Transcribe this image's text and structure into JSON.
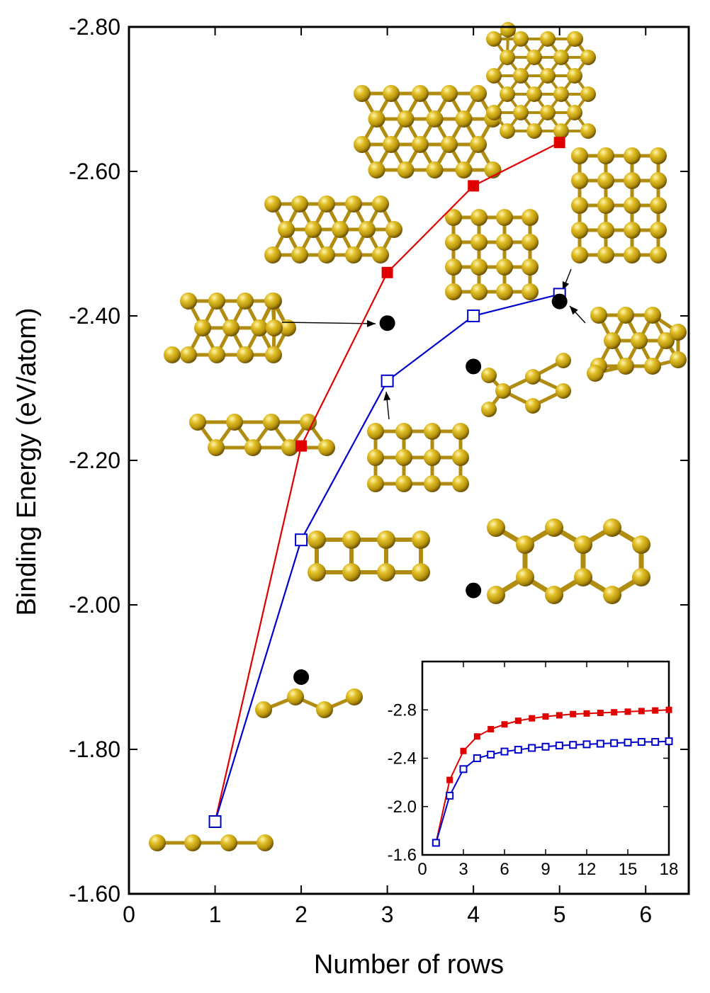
{
  "chart_data": [
    {
      "type": "line",
      "xlabel": "Number of rows",
      "ylabel": "Binding Energy (eV/atom)",
      "xlim": [
        0,
        6.5
      ],
      "ylim": [
        -1.6,
        -2.8
      ],
      "x_ticks": [
        "0",
        "1",
        "2",
        "3",
        "4",
        "5",
        "6"
      ],
      "y_ticks": [
        "-1.60",
        "-1.80",
        "-2.00",
        "-2.20",
        "-2.40",
        "-2.60",
        "-2.80"
      ],
      "grid": false,
      "series": [
        {
          "marker": "filled-square",
          "color": "#e00000",
          "x": [
            1,
            2,
            3,
            4,
            5
          ],
          "y": [
            -1.7,
            -2.22,
            -2.46,
            -2.58,
            -2.64
          ]
        },
        {
          "marker": "open-square",
          "color": "#0000cc",
          "x": [
            1,
            2,
            3,
            4,
            5
          ],
          "y": [
            -1.7,
            -2.09,
            -2.31,
            -2.4,
            -2.43
          ]
        },
        {
          "marker": "filled-circle",
          "color": "#000000",
          "line": false,
          "x": [
            2,
            3,
            4,
            4,
            5
          ],
          "y": [
            -1.9,
            -2.39,
            -2.33,
            -2.02,
            -2.42
          ]
        }
      ]
    },
    {
      "type": "line",
      "inset": true,
      "xlim": [
        0,
        18
      ],
      "ylim": [
        -1.6,
        -3.2
      ],
      "x_ticks": [
        "0",
        "3",
        "6",
        "9",
        "12",
        "15",
        "18"
      ],
      "y_ticks": [
        "-1.6",
        "-2.0",
        "-2.4",
        "-2.8"
      ],
      "series": [
        {
          "marker": "filled-square",
          "color": "#e00000",
          "x": [
            1,
            2,
            3,
            4,
            5,
            6,
            7,
            8,
            9,
            10,
            11,
            12,
            13,
            14,
            15,
            16,
            17,
            18
          ],
          "y": [
            -1.7,
            -2.22,
            -2.46,
            -2.58,
            -2.64,
            -2.68,
            -2.71,
            -2.73,
            -2.745,
            -2.755,
            -2.765,
            -2.77,
            -2.775,
            -2.78,
            -2.785,
            -2.79,
            -2.795,
            -2.8
          ]
        },
        {
          "marker": "open-square",
          "color": "#0000cc",
          "x": [
            1,
            2,
            3,
            4,
            5,
            6,
            7,
            8,
            9,
            10,
            11,
            12,
            13,
            14,
            15,
            16,
            17,
            18
          ],
          "y": [
            -1.7,
            -2.09,
            -2.31,
            -2.4,
            -2.43,
            -2.455,
            -2.47,
            -2.485,
            -2.495,
            -2.505,
            -2.51,
            -2.515,
            -2.52,
            -2.525,
            -2.53,
            -2.535,
            -2.535,
            -2.54
          ]
        }
      ]
    }
  ],
  "structures": [
    "chain",
    "zigzag-chain",
    "ladder",
    "double-triangular",
    "triangular-3row",
    "square-3row",
    "hexagonal",
    "zigzag-ribbon",
    "square-4row",
    "triangular-4row",
    "square-5row",
    "triangular-5row",
    "triangular-6row",
    "dense-5row"
  ],
  "colors": {
    "gold": "#c8a418",
    "gold_dark": "#7a6008",
    "bond": "#b08c10"
  }
}
